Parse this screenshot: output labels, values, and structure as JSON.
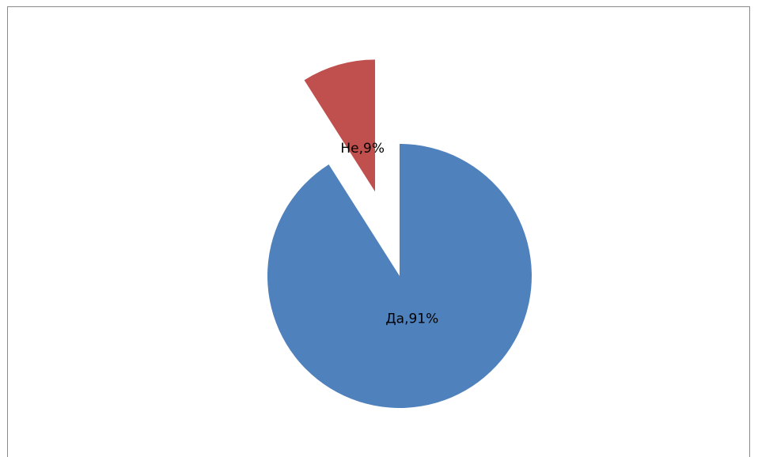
{
  "chart_data": {
    "type": "pie",
    "values": [
      91,
      9
    ],
    "value_labels": [
      "Да,91%",
      "Не,9%"
    ],
    "colors": [
      "#4f81bd",
      "#c0504d"
    ]
  }
}
